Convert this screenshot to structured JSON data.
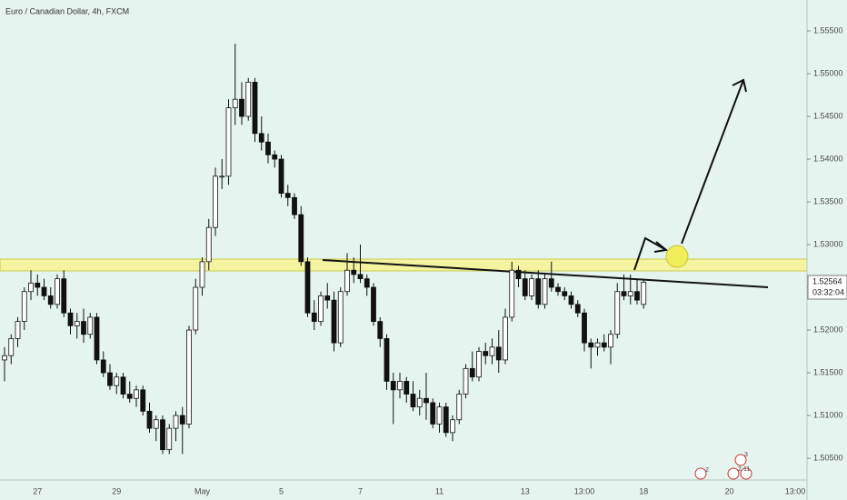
{
  "chart_data": {
    "type": "candlestick",
    "title": "Euro / Canadian Dollar, 4h, FXCM",
    "categories": [
      null,
      null,
      null,
      null,
      null,
      "27",
      null,
      null,
      null,
      null,
      null,
      null,
      null,
      null,
      null,
      null,
      null,
      "29",
      null,
      null,
      null,
      null,
      null,
      null,
      null,
      null,
      null,
      null,
      null,
      null,
      "May",
      null,
      null,
      null,
      null,
      null,
      null,
      null,
      null,
      null,
      null,
      null,
      "5",
      null,
      null,
      null,
      null,
      null,
      null,
      null,
      null,
      null,
      null,
      null,
      "7",
      null,
      null,
      null,
      null,
      null,
      null,
      null,
      null,
      null,
      null,
      null,
      "11",
      null,
      null,
      null,
      null,
      null,
      null,
      null,
      null,
      null,
      null,
      null,
      null,
      "13",
      null,
      null,
      null,
      null,
      null,
      null,
      null,
      null,
      "13:00",
      null,
      null,
      null,
      null,
      null,
      null,
      null,
      null,
      "18",
      null,
      null,
      null,
      null,
      null,
      null,
      null,
      null,
      null,
      null,
      null,
      null,
      "20",
      null,
      null,
      null,
      null,
      null,
      null,
      null,
      null,
      null,
      "13:00"
    ],
    "ohlc": [
      [
        1.5165,
        1.518,
        1.514,
        1.517
      ],
      [
        1.517,
        1.5195,
        1.516,
        1.519
      ],
      [
        1.519,
        1.5215,
        1.518,
        1.521
      ],
      [
        1.521,
        1.525,
        1.52,
        1.5245
      ],
      [
        1.5245,
        1.527,
        1.5235,
        1.5255
      ],
      [
        1.5255,
        1.5265,
        1.524,
        1.525
      ],
      [
        1.525,
        1.526,
        1.5235,
        1.524
      ],
      [
        1.524,
        1.525,
        1.5225,
        1.523
      ],
      [
        1.523,
        1.5265,
        1.5225,
        1.526
      ],
      [
        1.526,
        1.527,
        1.5215,
        1.522
      ],
      [
        1.522,
        1.5225,
        1.5195,
        1.5205
      ],
      [
        1.5205,
        1.522,
        1.519,
        1.521
      ],
      [
        1.521,
        1.5225,
        1.5185,
        1.5195
      ],
      [
        1.5195,
        1.522,
        1.519,
        1.5215
      ],
      [
        1.5215,
        1.522,
        1.516,
        1.5165
      ],
      [
        1.5165,
        1.5175,
        1.5145,
        1.515
      ],
      [
        1.515,
        1.516,
        1.513,
        1.5135
      ],
      [
        1.5135,
        1.515,
        1.5125,
        1.5145
      ],
      [
        1.5145,
        1.515,
        1.512,
        1.5125
      ],
      [
        1.5125,
        1.514,
        1.5115,
        1.512
      ],
      [
        1.512,
        1.5135,
        1.511,
        1.513
      ],
      [
        1.513,
        1.5135,
        1.51,
        1.5105
      ],
      [
        1.5105,
        1.5115,
        1.508,
        1.5085
      ],
      [
        1.5085,
        1.51,
        1.507,
        1.5095
      ],
      [
        1.5095,
        1.51,
        1.5055,
        1.506
      ],
      [
        1.506,
        1.509,
        1.5055,
        1.5085
      ],
      [
        1.5085,
        1.5105,
        1.507,
        1.51
      ],
      [
        1.51,
        1.511,
        1.5055,
        1.509
      ],
      [
        1.509,
        1.5205,
        1.5085,
        1.52
      ],
      [
        1.52,
        1.526,
        1.5195,
        1.525
      ],
      [
        1.525,
        1.5285,
        1.524,
        1.528
      ],
      [
        1.528,
        1.533,
        1.527,
        1.532
      ],
      [
        1.532,
        1.539,
        1.531,
        1.538
      ],
      [
        1.538,
        1.54,
        1.5365,
        1.538
      ],
      [
        1.538,
        1.547,
        1.537,
        1.546
      ],
      [
        1.546,
        1.5535,
        1.544,
        1.547
      ],
      [
        1.547,
        1.549,
        1.544,
        1.545
      ],
      [
        1.545,
        1.5495,
        1.5445,
        1.549
      ],
      [
        1.549,
        1.5495,
        1.542,
        1.543
      ],
      [
        1.543,
        1.545,
        1.541,
        1.542
      ],
      [
        1.542,
        1.543,
        1.5395,
        1.5405
      ],
      [
        1.5405,
        1.541,
        1.539,
        1.54
      ],
      [
        1.54,
        1.5405,
        1.5355,
        1.536
      ],
      [
        1.536,
        1.537,
        1.5345,
        1.5355
      ],
      [
        1.5355,
        1.536,
        1.533,
        1.5335
      ],
      [
        1.5335,
        1.5345,
        1.5275,
        1.528
      ],
      [
        1.528,
        1.5285,
        1.5215,
        1.522
      ],
      [
        1.522,
        1.5235,
        1.52,
        1.521
      ],
      [
        1.521,
        1.5245,
        1.5205,
        1.524
      ],
      [
        1.524,
        1.5255,
        1.5225,
        1.5235
      ],
      [
        1.5235,
        1.5245,
        1.5175,
        1.5185
      ],
      [
        1.5185,
        1.525,
        1.518,
        1.5245
      ],
      [
        1.5245,
        1.529,
        1.524,
        1.527
      ],
      [
        1.527,
        1.5285,
        1.5255,
        1.5265
      ],
      [
        1.5265,
        1.53,
        1.5255,
        1.526
      ],
      [
        1.526,
        1.5265,
        1.524,
        1.525
      ],
      [
        1.525,
        1.5255,
        1.5205,
        1.521
      ],
      [
        1.521,
        1.5215,
        1.518,
        1.519
      ],
      [
        1.519,
        1.5195,
        1.513,
        1.514
      ],
      [
        1.514,
        1.515,
        1.509,
        1.513
      ],
      [
        1.513,
        1.515,
        1.512,
        1.514
      ],
      [
        1.514,
        1.5145,
        1.5115,
        1.5125
      ],
      [
        1.5125,
        1.514,
        1.5105,
        1.511
      ],
      [
        1.511,
        1.513,
        1.51,
        1.512
      ],
      [
        1.512,
        1.515,
        1.5095,
        1.5115
      ],
      [
        1.5115,
        1.512,
        1.5085,
        1.509
      ],
      [
        1.509,
        1.5115,
        1.508,
        1.511
      ],
      [
        1.511,
        1.5115,
        1.5075,
        1.508
      ],
      [
        1.508,
        1.51,
        1.507,
        1.5095
      ],
      [
        1.5095,
        1.513,
        1.509,
        1.5125
      ],
      [
        1.5125,
        1.516,
        1.512,
        1.5155
      ],
      [
        1.5155,
        1.5175,
        1.514,
        1.5145
      ],
      [
        1.5145,
        1.518,
        1.514,
        1.5175
      ],
      [
        1.5175,
        1.5185,
        1.516,
        1.517
      ],
      [
        1.517,
        1.519,
        1.516,
        1.518
      ],
      [
        1.518,
        1.52,
        1.515,
        1.5165
      ],
      [
        1.5165,
        1.5225,
        1.516,
        1.5215
      ],
      [
        1.5215,
        1.528,
        1.521,
        1.527
      ],
      [
        1.527,
        1.5275,
        1.525,
        1.526
      ],
      [
        1.526,
        1.527,
        1.5235,
        1.524
      ],
      [
        1.524,
        1.5265,
        1.5235,
        1.526
      ],
      [
        1.526,
        1.527,
        1.5225,
        1.523
      ],
      [
        1.523,
        1.5265,
        1.5225,
        1.526
      ],
      [
        1.526,
        1.528,
        1.5245,
        1.525
      ],
      [
        1.525,
        1.5255,
        1.524,
        1.5245
      ],
      [
        1.5245,
        1.525,
        1.5235,
        1.524
      ],
      [
        1.524,
        1.5245,
        1.5225,
        1.523
      ],
      [
        1.523,
        1.5235,
        1.5215,
        1.522
      ],
      [
        1.522,
        1.5225,
        1.5175,
        1.5185
      ],
      [
        1.5185,
        1.519,
        1.5155,
        1.518
      ],
      [
        1.518,
        1.519,
        1.517,
        1.5185
      ],
      [
        1.5185,
        1.5195,
        1.5175,
        1.518
      ],
      [
        1.518,
        1.52,
        1.516,
        1.5195
      ],
      [
        1.5195,
        1.5255,
        1.519,
        1.5245
      ],
      [
        1.5245,
        1.5265,
        1.5235,
        1.524
      ],
      [
        1.524,
        1.5265,
        1.523,
        1.5245
      ],
      [
        1.5245,
        1.526,
        1.523,
        1.5235
      ],
      [
        1.523,
        1.526,
        1.5225,
        1.5256
      ],
      null,
      null,
      null,
      null,
      null,
      null,
      null,
      null,
      null,
      null,
      null,
      null,
      null,
      null,
      null,
      null,
      null,
      null,
      null,
      null,
      null,
      null,
      null
    ],
    "ylim": [
      1.50277,
      1.55862
    ],
    "yticks": [
      {
        "value": 1.505,
        "label": "1.50500"
      },
      {
        "value": 1.51,
        "label": "1.51000"
      },
      {
        "value": 1.515,
        "label": "1.51500"
      },
      {
        "value": 1.52,
        "label": "1.52000"
      },
      {
        "value": 1.525,
        "label": "1.52500"
      },
      {
        "value": 1.53,
        "label": "1.53000"
      },
      {
        "value": 1.535,
        "label": "1.53500"
      },
      {
        "value": 1.54,
        "label": "1.54000"
      },
      {
        "value": 1.545,
        "label": "1.54500"
      },
      {
        "value": 1.55,
        "label": "1.55000"
      },
      {
        "value": 1.555,
        "label": "1.55500"
      }
    ],
    "grid": false,
    "up_color": "#ffffff",
    "down_color": "#111111",
    "last_price": {
      "value": 1.52564,
      "label": "1.52564"
    },
    "countdown": "03:32:04",
    "events": [
      "2",
      "2",
      "11",
      "3"
    ]
  }
}
